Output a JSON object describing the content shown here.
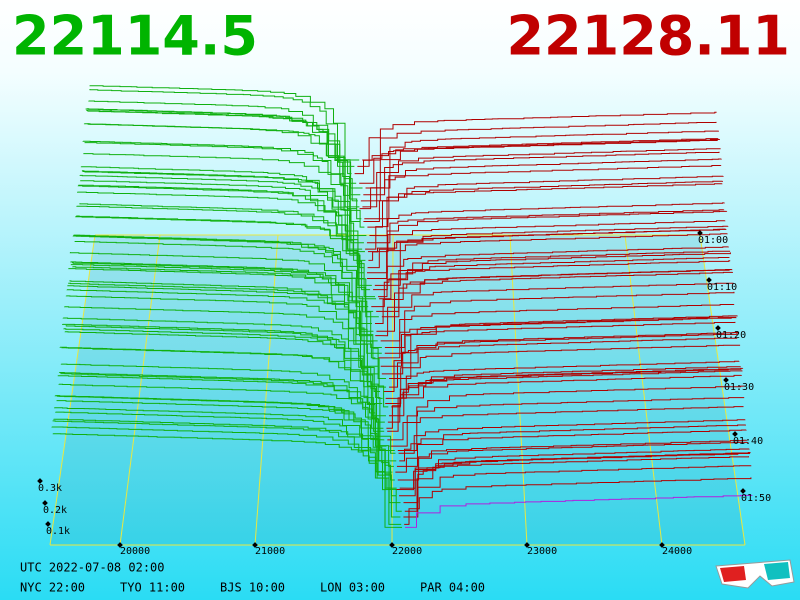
{
  "header": {
    "bid": "22114.5",
    "ask": "22128.11"
  },
  "price_axis": [
    "20000",
    "21000",
    "22000",
    "23000",
    "24000"
  ],
  "volume_axis": [
    "0.3k",
    "0.2k",
    "0.1k"
  ],
  "time_axis": [
    "01:00",
    "01:10",
    "01:20",
    "01:30",
    "01:40",
    "01:50"
  ],
  "clock": {
    "utc": "UTC 2022-07-08 02:00",
    "zones": [
      "NYC 22:00",
      "TYO 11:00",
      "BJS 10:00",
      "LON 03:00",
      "PAR 04:00"
    ]
  }
}
